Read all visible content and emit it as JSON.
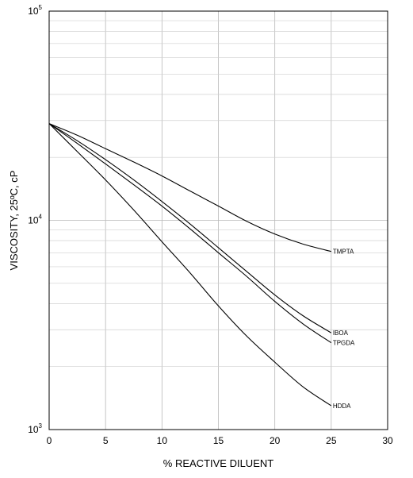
{
  "chart_data": {
    "type": "line",
    "title": "",
    "xlabel": "% REACTIVE DILUENT",
    "ylabel": "VISCOSITY, 25ºC, cP",
    "xlim": [
      0,
      30
    ],
    "ylim": [
      1000,
      100000
    ],
    "yscale": "log",
    "grid": true,
    "x_ticks": [
      "0",
      "5",
      "10",
      "15",
      "20",
      "25",
      "30"
    ],
    "y_ticks": [
      {
        "base": "10",
        "exp": "3",
        "value": 1000
      },
      {
        "base": "10",
        "exp": "4",
        "value": 10000
      },
      {
        "base": "10",
        "exp": "5",
        "value": 100000
      }
    ],
    "x": [
      0,
      2.5,
      5,
      7.5,
      10,
      12.5,
      15,
      17.5,
      20,
      22.5,
      25
    ],
    "series": [
      {
        "name": "TMPTA",
        "values": [
          29000,
          25500,
          22000,
          19000,
          16300,
          13800,
          11700,
          9900,
          8600,
          7700,
          7100
        ]
      },
      {
        "name": "IBOA",
        "values": [
          29000,
          24000,
          19500,
          15600,
          12300,
          9600,
          7400,
          5700,
          4400,
          3500,
          2900
        ]
      },
      {
        "name": "TPGDA",
        "values": [
          29000,
          23300,
          18600,
          14800,
          11700,
          9100,
          7000,
          5400,
          4100,
          3200,
          2600
        ]
      },
      {
        "name": "HDDA",
        "values": [
          29000,
          21300,
          15600,
          11200,
          7900,
          5600,
          3900,
          2800,
          2100,
          1600,
          1300
        ]
      }
    ]
  }
}
